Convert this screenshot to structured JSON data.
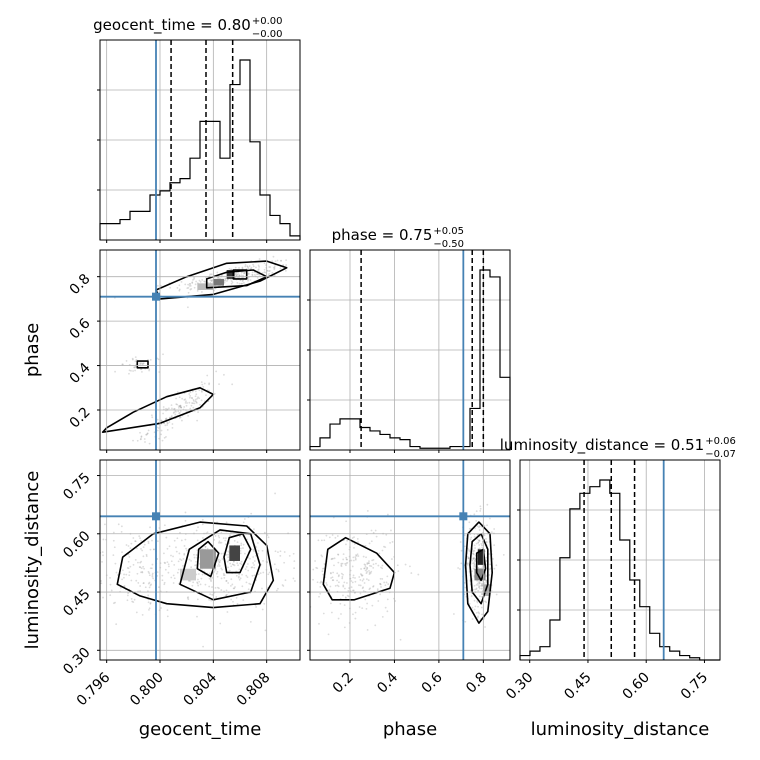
{
  "colors": {
    "truth": "#4682b4",
    "hist": "#000000",
    "contour": "#000000",
    "grid": "#b0b0b0",
    "points": "#9a9a9a"
  },
  "chart_data": {
    "type": "corner",
    "parameters": [
      "geocent_time",
      "phase",
      "luminosity_distance"
    ],
    "truths": [
      0.7997,
      0.71,
      0.645
    ],
    "ranges": [
      [
        0.7955,
        0.8105
      ],
      [
        0.02,
        0.92
      ],
      [
        0.275,
        0.79
      ]
    ],
    "ticks": {
      "geocent_time": {
        "values": [
          0.796,
          0.8,
          0.804,
          0.808
        ],
        "labels": [
          "0.796",
          "0.800",
          "0.804",
          "0.808"
        ]
      },
      "phase": {
        "values": [
          0.2,
          0.4,
          0.6,
          0.8
        ],
        "labels": [
          "0.2",
          "0.4",
          "0.6",
          "0.8"
        ]
      },
      "luminosity_distance": {
        "values": [
          0.3,
          0.45,
          0.6,
          0.75
        ],
        "labels": [
          "0.30",
          "0.45",
          "0.60",
          "0.75"
        ]
      }
    },
    "titles": [
      {
        "main": "geocent_time = 0.80",
        "sup": "+0.00",
        "sub": "−0.00",
        "quantiles": [
          0.80083,
          0.80345,
          0.80545
        ]
      },
      {
        "main": "phase = 0.75",
        "sup": "+0.05",
        "sub": "−0.50",
        "quantiles": [
          0.25,
          0.75,
          0.8
        ]
      },
      {
        "main": "luminosity_distance = 0.51",
        "sup": "+0.06",
        "sub": "−0.07",
        "quantiles": [
          0.44,
          0.51,
          0.57
        ]
      }
    ],
    "histograms": [
      {
        "param": "geocent_time",
        "edges_start": 0.7955,
        "bin_width": 0.00075,
        "counts": [
          4,
          4,
          5,
          7,
          7,
          11,
          12,
          14,
          15,
          20,
          29,
          29,
          20,
          38,
          44,
          24,
          11,
          6,
          4,
          1
        ]
      },
      {
        "param": "phase",
        "edges_start": 0.02,
        "bin_width": 0.045,
        "counts": [
          2,
          7,
          15,
          18,
          18,
          13,
          11,
          9,
          7,
          6,
          2,
          1,
          1,
          1,
          2,
          2,
          24,
          104,
          100,
          42
        ]
      },
      {
        "param": "luminosity_distance",
        "edges_start": 0.275,
        "bin_width": 0.0257,
        "counts": [
          2,
          4,
          6,
          18,
          46,
          68,
          75,
          78,
          81,
          75,
          54,
          36,
          24,
          12,
          6,
          4,
          2,
          1,
          0,
          0
        ]
      }
    ],
    "grid": true
  }
}
